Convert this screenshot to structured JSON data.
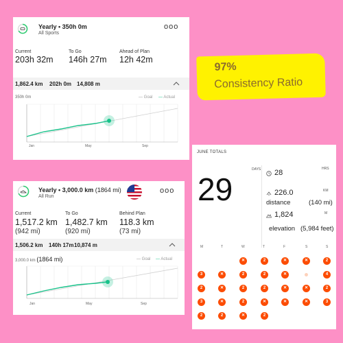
{
  "card1": {
    "title": "Yearly • 350h 0m",
    "subtitle": "All Sports",
    "menu": "ooo",
    "stats": [
      {
        "label": "Current",
        "value": "203h 32m"
      },
      {
        "label": "To Go",
        "value": "146h 27m"
      },
      {
        "label": "Ahead of Plan",
        "value": "12h 42m"
      }
    ],
    "bar": {
      "distance": "1,862.4 km",
      "time": "202h 0m",
      "elevation": "14,808 m"
    },
    "chart": {
      "goal_label": "350h 0m",
      "legend_goal": "Goal",
      "legend_actual": "Actual",
      "months": [
        "Jan",
        "May",
        "Sep"
      ]
    }
  },
  "card2": {
    "title_main": "Yearly • 3,000.0 km",
    "title_alt": "(1864 mi)",
    "subtitle": "All Run",
    "menu": "ooo",
    "stats": [
      {
        "label": "Current",
        "value": "1,517.2 km",
        "alt": "(942 mi)"
      },
      {
        "label": "To Go",
        "value": "1,482.7 km",
        "alt": "(920 mi)"
      },
      {
        "label": "Behind Plan",
        "value": "118.3 km",
        "alt": "(73 mi)"
      }
    ],
    "bar": {
      "distance": "1,506.2 km",
      "time": "140h 17m",
      "elevation": "10,874 m"
    },
    "chart": {
      "goal_label": "3,000.0 km",
      "goal_alt": "(1864 mi)",
      "legend_goal": "Goal",
      "legend_actual": "Actual",
      "months": [
        "Jan",
        "May",
        "Sep"
      ]
    }
  },
  "callout": {
    "percent": "97%",
    "label": "Consistency Ratio"
  },
  "june": {
    "header": "JUNE TOTALS",
    "days_label": "DAYS",
    "days": "29",
    "hrs_label": "HRS",
    "hrs": "28",
    "km_label": "KM",
    "distance_km": "226.0",
    "distance_word": "distance",
    "distance_mi": "(140 mi)",
    "elevation_m": "1,824",
    "elevation_unit": "M",
    "elevation_word": "elevation",
    "elevation_ft": "(5,984 feet)",
    "weekdays": [
      "M",
      "T",
      "W",
      "T",
      "F",
      "S",
      "S"
    ],
    "accent": "#fc4c02"
  }
}
